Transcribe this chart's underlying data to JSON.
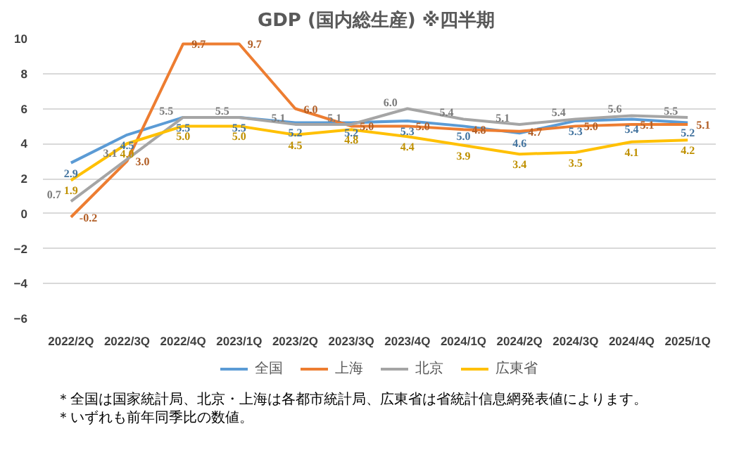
{
  "chart_data": {
    "type": "line",
    "title": "GDP (国内総生産)  ※四半期",
    "categories": [
      "2022/2Q",
      "2022/3Q",
      "2022/4Q",
      "2023/1Q",
      "2023/2Q",
      "2023/3Q",
      "2023/4Q",
      "2024/1Q",
      "2024/2Q",
      "2024/3Q",
      "2024/4Q",
      "2025/1Q"
    ],
    "series": [
      {
        "name": "全国",
        "color": "#5b9bd5",
        "values": [
          2.9,
          4.5,
          5.5,
          5.5,
          5.2,
          5.2,
          5.3,
          5.0,
          4.6,
          5.3,
          5.4,
          5.2
        ],
        "value_labels": [
          "2.9",
          "4.5",
          "5.5",
          "5.5",
          "5.2",
          "5.2",
          "5.3",
          "5.0",
          "4.6",
          "5.3",
          "5.4",
          "5.2"
        ]
      },
      {
        "name": "上海",
        "color": "#ed7d31",
        "values": [
          -0.2,
          3.0,
          9.7,
          9.7,
          6.0,
          5.0,
          5.0,
          4.8,
          4.7,
          5.0,
          5.1,
          5.1
        ],
        "value_labels": [
          "-0.2",
          "3.0",
          "9.7",
          "9.7",
          "6.0",
          "5.0",
          "5.0",
          "4.8",
          "4.7",
          "5.0",
          "5.1",
          "5.1"
        ]
      },
      {
        "name": "北京",
        "color": "#a5a5a5",
        "values": [
          0.7,
          3.1,
          5.5,
          5.5,
          5.1,
          5.1,
          6.0,
          5.4,
          5.1,
          5.4,
          5.6,
          5.5
        ],
        "value_labels": [
          "0.7",
          "3.1",
          "5.5",
          "5.5",
          "5.1",
          "5.1",
          "6.0",
          "5.4",
          "5.1",
          "5.4",
          "5.6",
          "5.5"
        ]
      },
      {
        "name": "広東省",
        "color": "#ffc000",
        "values": [
          1.9,
          4.0,
          5.0,
          5.0,
          4.5,
          4.8,
          4.4,
          3.9,
          3.4,
          3.5,
          4.1,
          4.2
        ],
        "value_labels": [
          "1.9",
          "4.0",
          "5.0",
          "5.0",
          "4.5",
          "4.8",
          "4.4",
          "3.9",
          "3.4",
          "3.5",
          "4.1",
          "4.2"
        ]
      }
    ],
    "data_labels": true,
    "ylim": [
      -6,
      10
    ],
    "yticks": [
      -6,
      -4,
      -2,
      0,
      2,
      4,
      6,
      8,
      10
    ],
    "grid": "y",
    "legend": "bottom",
    "annotations": [
      "＊全国は国家統計局、北京・上海は各都市統計局、広東省は省統計信息網発表値によります。",
      "＊いずれも前年同季比の数値。"
    ]
  }
}
